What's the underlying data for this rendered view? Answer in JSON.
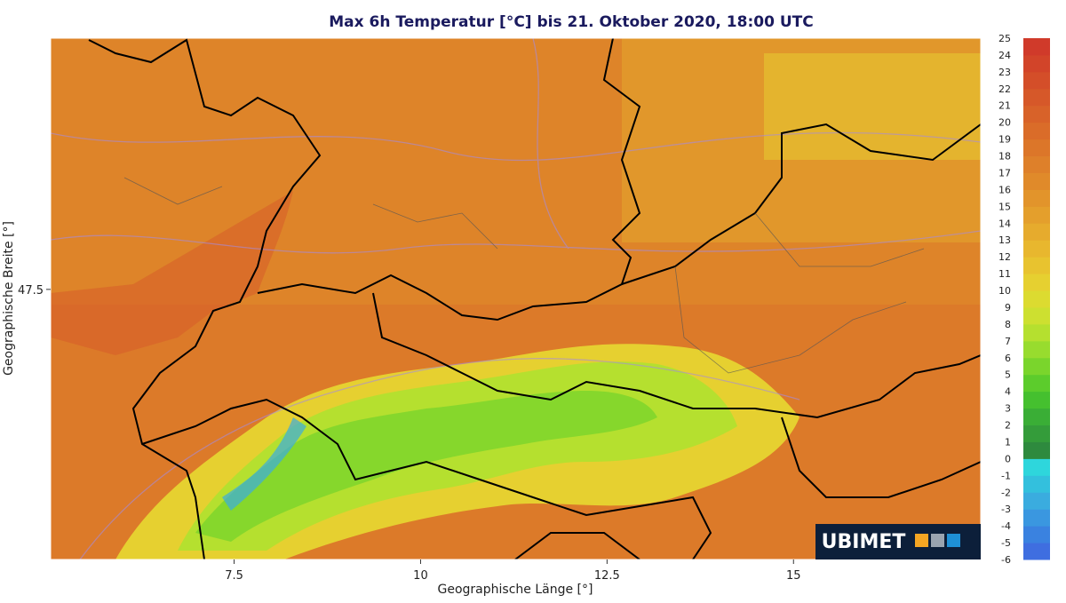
{
  "map": {
    "title": "Max 6h Temperatur [°C] bis 21. Oktober 2020, 18:00 UTC",
    "xlabel": "Geographische Länge [°]",
    "ylabel": "Geographische Breite [°]",
    "xlim": [
      5.04,
      17.51
    ],
    "ylim": [
      45.07,
      49.76
    ],
    "xticks": [
      7.5,
      10,
      12.5,
      15
    ],
    "yticks": [
      47.5
    ],
    "colorbar": {
      "ticks": [
        -6,
        -5,
        -4,
        -3,
        -2,
        -1,
        0,
        1,
        2,
        3,
        4,
        5,
        6,
        7,
        8,
        9,
        10,
        11,
        12,
        13,
        14,
        15,
        16,
        17,
        18,
        19,
        20,
        21,
        22,
        23,
        24,
        25
      ],
      "colors": [
        "#3f6ee0",
        "#3a82e0",
        "#3a97e0",
        "#3aacdf",
        "#33c0dd",
        "#2ed6dc",
        "#2e8a3e",
        "#349c3a",
        "#3aae36",
        "#45c02f",
        "#5ccc2c",
        "#7ad52c",
        "#98dc2e",
        "#b5e02f",
        "#cde030",
        "#dcdb30",
        "#e6d030",
        "#e8c32f",
        "#e8b72e",
        "#e6ab2d",
        "#e49f2c",
        "#e2942b",
        "#e08a2a",
        "#de802a",
        "#dc7629",
        "#da6c29",
        "#d86229",
        "#d65829",
        "#d44e29",
        "#d24429",
        "#d03a2a"
      ]
    },
    "logo": "UBIMET"
  }
}
